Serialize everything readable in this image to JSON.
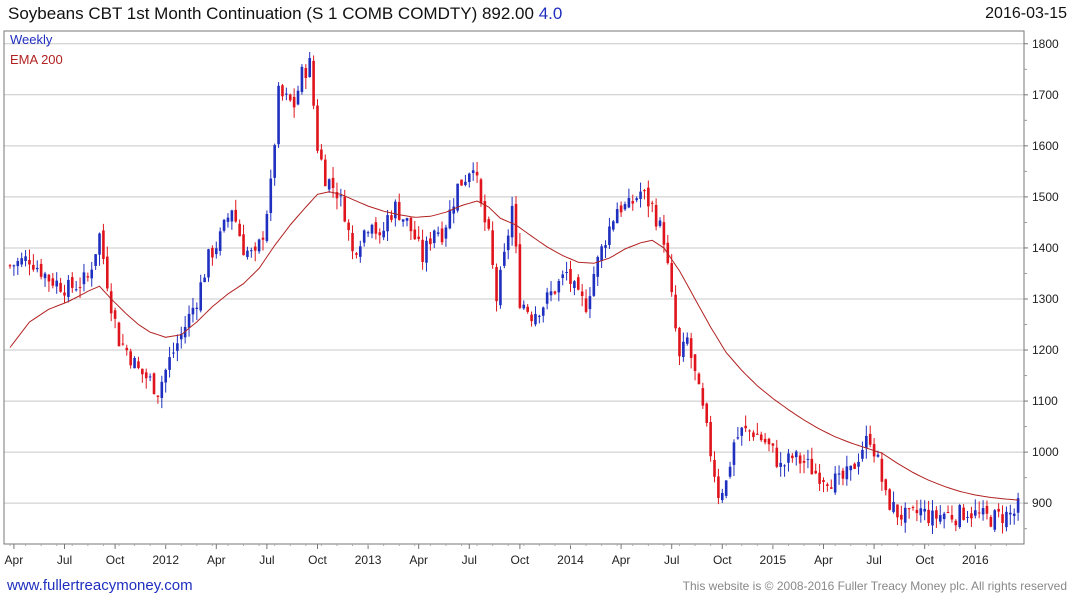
{
  "header": {
    "title": "Soybeans CBT 1st Month Continuation (S 1 COMB COMDTY) 892.00",
    "change": "4.0",
    "date": "2016-03-15"
  },
  "legend": {
    "weekly": "Weekly",
    "ema": "EMA 200"
  },
  "footer": {
    "site": "www.fullertreacymoney.com",
    "copyright": "This website is © 2008-2016 Fuller Treacy Money plc. All rights reserved"
  },
  "colors": {
    "up": "#1f2fbf",
    "down": "#e0141c",
    "ema": "#b22222",
    "grid": "#c8c8c8"
  },
  "chart_data": {
    "type": "candlestick",
    "frequency": "weekly",
    "x_tick_labels": [
      "Apr",
      "Jul",
      "Oct",
      "2012",
      "Apr",
      "Jul",
      "Oct",
      "2013",
      "Apr",
      "Jul",
      "Oct",
      "2014",
      "Apr",
      "Jul",
      "Oct",
      "2015",
      "Apr",
      "Jul",
      "Oct",
      "2016"
    ],
    "x_tick_weeks": [
      1,
      14,
      27,
      40,
      53,
      66,
      79,
      92,
      105,
      118,
      131,
      144,
      157,
      170,
      183,
      196,
      209,
      222,
      235,
      248
    ],
    "y_ticks": [
      900,
      1000,
      1100,
      1200,
      1300,
      1400,
      1500,
      1600,
      1700,
      1800
    ],
    "ylim": [
      820,
      1825
    ],
    "num_weeks": 260,
    "close_anchors": [
      [
        0,
        1365
      ],
      [
        5,
        1380
      ],
      [
        10,
        1340
      ],
      [
        15,
        1320
      ],
      [
        20,
        1340
      ],
      [
        23,
        1425
      ],
      [
        26,
        1290
      ],
      [
        28,
        1220
      ],
      [
        30,
        1200
      ],
      [
        33,
        1160
      ],
      [
        36,
        1140
      ],
      [
        38,
        1120
      ],
      [
        41,
        1180
      ],
      [
        44,
        1230
      ],
      [
        48,
        1300
      ],
      [
        51,
        1380
      ],
      [
        54,
        1420
      ],
      [
        57,
        1480
      ],
      [
        60,
        1400
      ],
      [
        63,
        1380
      ],
      [
        65,
        1430
      ],
      [
        67,
        1520
      ],
      [
        69,
        1700
      ],
      [
        71,
        1690
      ],
      [
        73,
        1680
      ],
      [
        75,
        1740
      ],
      [
        77,
        1760
      ],
      [
        79,
        1600
      ],
      [
        81,
        1540
      ],
      [
        84,
        1510
      ],
      [
        86,
        1470
      ],
      [
        88,
        1390
      ],
      [
        90,
        1420
      ],
      [
        93,
        1460
      ],
      [
        95,
        1410
      ],
      [
        97,
        1460
      ],
      [
        99,
        1480
      ],
      [
        102,
        1450
      ],
      [
        104,
        1420
      ],
      [
        106,
        1380
      ],
      [
        109,
        1440
      ],
      [
        111,
        1430
      ],
      [
        113,
        1470
      ],
      [
        115,
        1520
      ],
      [
        117,
        1540
      ],
      [
        119,
        1570
      ],
      [
        121,
        1480
      ],
      [
        123,
        1420
      ],
      [
        125,
        1300
      ],
      [
        127,
        1380
      ],
      [
        129,
        1480
      ],
      [
        131,
        1300
      ],
      [
        134,
        1270
      ],
      [
        137,
        1290
      ],
      [
        140,
        1320
      ],
      [
        143,
        1350
      ],
      [
        146,
        1300
      ],
      [
        148,
        1290
      ],
      [
        150,
        1350
      ],
      [
        153,
        1420
      ],
      [
        156,
        1480
      ],
      [
        159,
        1480
      ],
      [
        162,
        1510
      ],
      [
        165,
        1480
      ],
      [
        168,
        1420
      ],
      [
        170,
        1300
      ],
      [
        172,
        1180
      ],
      [
        174,
        1220
      ],
      [
        176,
        1150
      ],
      [
        178,
        1080
      ],
      [
        180,
        1000
      ],
      [
        182,
        920
      ],
      [
        184,
        940
      ],
      [
        186,
        1020
      ],
      [
        188,
        1040
      ],
      [
        191,
        1040
      ],
      [
        194,
        1020
      ],
      [
        196,
        1000
      ],
      [
        198,
        970
      ],
      [
        201,
        990
      ],
      [
        204,
        980
      ],
      [
        207,
        960
      ],
      [
        210,
        950
      ],
      [
        213,
        940
      ],
      [
        216,
        960
      ],
      [
        219,
        1010
      ],
      [
        221,
        1030
      ],
      [
        223,
        980
      ],
      [
        225,
        910
      ],
      [
        228,
        880
      ],
      [
        231,
        870
      ],
      [
        234,
        885
      ],
      [
        237,
        870
      ],
      [
        240,
        880
      ],
      [
        243,
        875
      ],
      [
        246,
        885
      ],
      [
        249,
        875
      ],
      [
        252,
        870
      ],
      [
        255,
        875
      ],
      [
        258,
        880
      ],
      [
        259,
        892
      ]
    ],
    "ema_200_anchors": [
      [
        0,
        1205
      ],
      [
        5,
        1255
      ],
      [
        10,
        1280
      ],
      [
        15,
        1295
      ],
      [
        20,
        1315
      ],
      [
        23,
        1325
      ],
      [
        26,
        1300
      ],
      [
        30,
        1270
      ],
      [
        33,
        1250
      ],
      [
        36,
        1235
      ],
      [
        40,
        1225
      ],
      [
        44,
        1230
      ],
      [
        48,
        1255
      ],
      [
        52,
        1285
      ],
      [
        56,
        1310
      ],
      [
        60,
        1330
      ],
      [
        64,
        1360
      ],
      [
        68,
        1405
      ],
      [
        72,
        1445
      ],
      [
        76,
        1480
      ],
      [
        79,
        1505
      ],
      [
        82,
        1510
      ],
      [
        85,
        1505
      ],
      [
        88,
        1495
      ],
      [
        92,
        1482
      ],
      [
        96,
        1472
      ],
      [
        100,
        1465
      ],
      [
        104,
        1460
      ],
      [
        108,
        1462
      ],
      [
        112,
        1470
      ],
      [
        116,
        1483
      ],
      [
        120,
        1492
      ],
      [
        123,
        1480
      ],
      [
        126,
        1458
      ],
      [
        130,
        1445
      ],
      [
        134,
        1423
      ],
      [
        138,
        1402
      ],
      [
        142,
        1385
      ],
      [
        146,
        1372
      ],
      [
        150,
        1370
      ],
      [
        154,
        1380
      ],
      [
        158,
        1398
      ],
      [
        162,
        1410
      ],
      [
        165,
        1415
      ],
      [
        168,
        1400
      ],
      [
        172,
        1355
      ],
      [
        176,
        1300
      ],
      [
        180,
        1245
      ],
      [
        184,
        1195
      ],
      [
        188,
        1160
      ],
      [
        192,
        1130
      ],
      [
        196,
        1105
      ],
      [
        200,
        1083
      ],
      [
        204,
        1063
      ],
      [
        208,
        1045
      ],
      [
        212,
        1030
      ],
      [
        216,
        1018
      ],
      [
        220,
        1008
      ],
      [
        224,
        998
      ],
      [
        228,
        978
      ],
      [
        232,
        960
      ],
      [
        236,
        945
      ],
      [
        240,
        933
      ],
      [
        244,
        923
      ],
      [
        248,
        916
      ],
      [
        252,
        911
      ],
      [
        256,
        908
      ],
      [
        259,
        906
      ]
    ]
  }
}
